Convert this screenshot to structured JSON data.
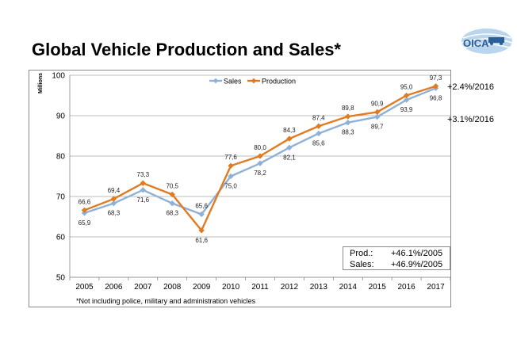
{
  "title": "Global Vehicle Production and Sales*",
  "logo": {
    "text": "OICA"
  },
  "units_label": "Millions",
  "chart_data": {
    "type": "line",
    "categories": [
      "2005",
      "2006",
      "2007",
      "2008",
      "2009",
      "2010",
      "2011",
      "2012",
      "2013",
      "2014",
      "2015",
      "2016",
      "2017"
    ],
    "series": [
      {
        "name": "Sales",
        "color": "#8fb1d8",
        "values": [
          65.9,
          68.3,
          71.6,
          68.3,
          65.6,
          75.0,
          78.2,
          82.1,
          85.6,
          88.3,
          89.7,
          93.9,
          96.8
        ],
        "labels": [
          "65,9",
          "68,3",
          "71,6",
          "68,3",
          "65,6",
          "75,0",
          "78,2",
          "82,1",
          "85,6",
          "88,3",
          "89,7",
          "93,9",
          "96,8"
        ]
      },
      {
        "name": "Production",
        "color": "#e07b22",
        "values": [
          66.6,
          69.4,
          73.3,
          70.5,
          61.6,
          77.6,
          80.0,
          84.3,
          87.4,
          89.8,
          90.9,
          95.0,
          97.3
        ],
        "labels": [
          "66,6",
          "69,4",
          "73,3",
          "70,5",
          "61,6",
          "77,6",
          "80,0",
          "84,3",
          "87,4",
          "89,8",
          "90,9",
          "95,0",
          "97,3"
        ]
      }
    ],
    "ylim": [
      50,
      100
    ],
    "yticks": [
      "50",
      "60",
      "70",
      "80",
      "90",
      "100"
    ],
    "grid": true,
    "legend": "top"
  },
  "annotations": {
    "prod_2016": "+2.4%/2016",
    "sales_2016": "+3.1%/2016",
    "summary": [
      {
        "key": "Prod.:",
        "value": "+46.1%/2005"
      },
      {
        "key": "Sales:",
        "value": "+46.9%/2005"
      }
    ]
  },
  "footnote": "*Not including police, military and administration vehicles"
}
